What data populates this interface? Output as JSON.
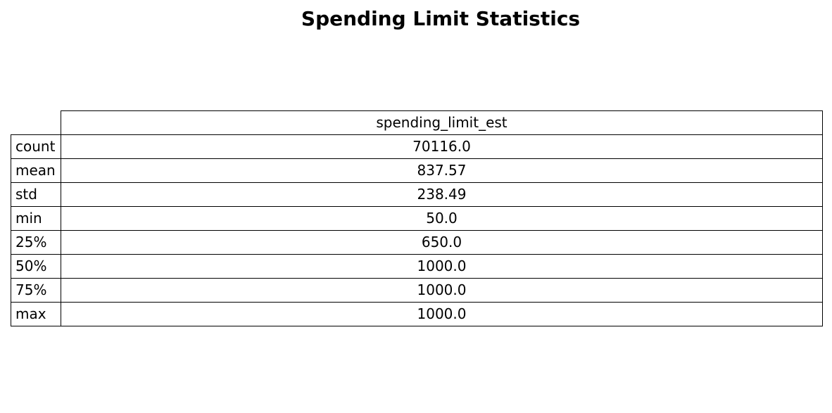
{
  "chart_data": {
    "type": "table",
    "title": "Spending Limit Statistics",
    "columns": [
      "spending_limit_est"
    ],
    "rows": [
      {
        "label": "count",
        "values": [
          "70116.0"
        ]
      },
      {
        "label": "mean",
        "values": [
          "837.57"
        ]
      },
      {
        "label": "std",
        "values": [
          "238.49"
        ]
      },
      {
        "label": "min",
        "values": [
          "50.0"
        ]
      },
      {
        "label": "25%",
        "values": [
          "650.0"
        ]
      },
      {
        "label": "50%",
        "values": [
          "1000.0"
        ]
      },
      {
        "label": "75%",
        "values": [
          "1000.0"
        ]
      },
      {
        "label": "max",
        "values": [
          "1000.0"
        ]
      }
    ]
  }
}
